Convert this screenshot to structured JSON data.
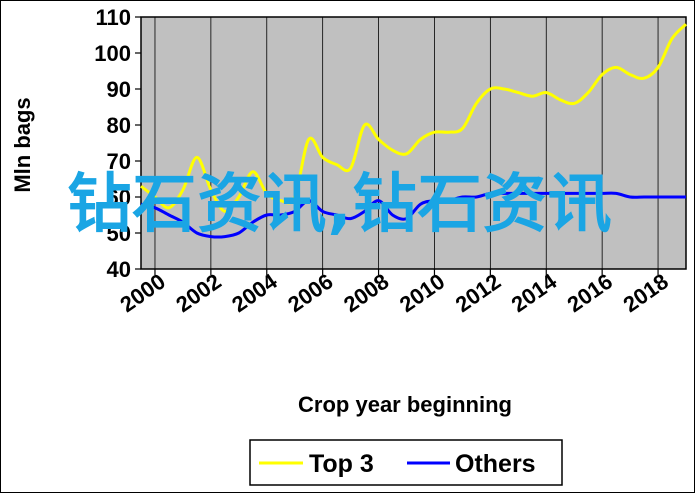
{
  "chart_data": {
    "type": "line",
    "title": "",
    "xlabel": "Crop year beginning",
    "ylabel": "Mln bags",
    "xlim": [
      1999.5,
      2019
    ],
    "ylim": [
      40,
      110
    ],
    "x_ticks": [
      2000,
      2002,
      2004,
      2006,
      2008,
      2010,
      2012,
      2014,
      2016,
      2018
    ],
    "y_ticks": [
      40,
      50,
      60,
      70,
      80,
      90,
      100,
      110
    ],
    "grid": "vertical",
    "legend_position": "bottom",
    "series": [
      {
        "name": "Top 3",
        "color": "#ffff00",
        "x": [
          1999.5,
          2000,
          2000.5,
          2001,
          2001.5,
          2002,
          2002.5,
          2003,
          2003.5,
          2004,
          2004.5,
          2005,
          2005.5,
          2006,
          2006.5,
          2007,
          2007.5,
          2008,
          2008.5,
          2009,
          2009.5,
          2010,
          2010.5,
          2011,
          2011.5,
          2012,
          2012.5,
          2013,
          2013.5,
          2014,
          2014.5,
          2015,
          2015.5,
          2016,
          2016.5,
          2017,
          2017.5,
          2018,
          2018.5,
          2019
        ],
        "values": [
          63,
          60,
          57,
          62,
          71,
          62,
          56,
          60,
          67,
          61,
          59,
          60,
          76,
          71,
          69,
          68,
          80,
          76,
          73,
          72,
          76,
          78,
          78,
          79,
          86,
          90,
          90,
          89,
          88,
          89,
          87,
          86,
          89,
          94,
          96,
          94,
          93,
          96,
          104,
          108
        ]
      },
      {
        "name": "Others",
        "color": "#0000ff",
        "x": [
          1999.5,
          2000,
          2000.5,
          2001,
          2001.5,
          2002,
          2002.5,
          2003,
          2003.5,
          2004,
          2004.5,
          2005,
          2005.5,
          2006,
          2006.5,
          2007,
          2007.5,
          2008,
          2008.5,
          2009,
          2009.5,
          2010,
          2010.5,
          2011,
          2011.5,
          2012,
          2012.5,
          2013,
          2013.5,
          2014,
          2014.5,
          2015,
          2015.5,
          2016,
          2016.5,
          2017,
          2017.5,
          2018,
          2018.5,
          2019
        ],
        "values": [
          58,
          57,
          55,
          53,
          50,
          49,
          49,
          50,
          53,
          55,
          55,
          56,
          59,
          56,
          55,
          54,
          56,
          59,
          55,
          54,
          58,
          59,
          59,
          60,
          60,
          61,
          61,
          61,
          61,
          61,
          61,
          61,
          61,
          61,
          61,
          60,
          60,
          60,
          60,
          60
        ]
      }
    ]
  },
  "legend": {
    "top3": "Top 3",
    "others": "Others"
  },
  "watermark": "钻石资讯,钻石资讯"
}
